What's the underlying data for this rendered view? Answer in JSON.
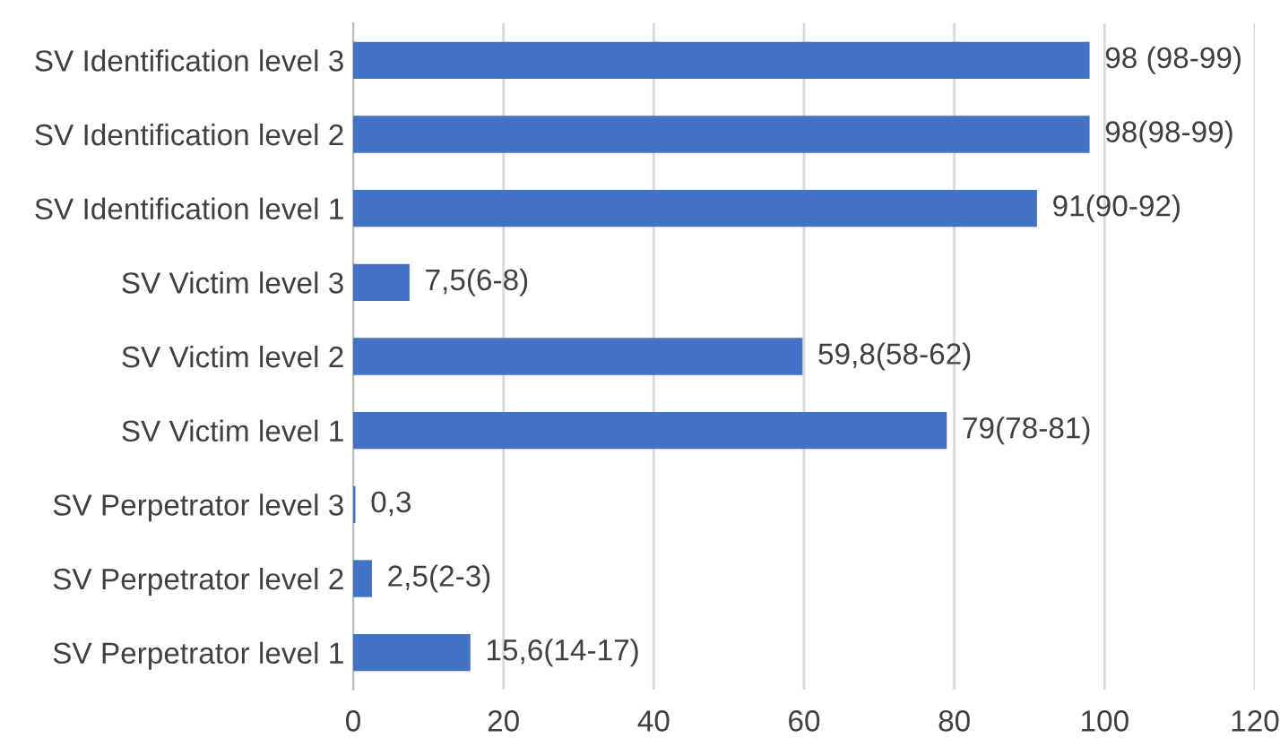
{
  "chart_data": {
    "type": "bar",
    "orientation": "horizontal",
    "categories": [
      "SV Identification level 3",
      "SV Identification level 2",
      "SV Identification level 1",
      "SV Victim level 3",
      "SV Victim level 2",
      "SV Victim level 1",
      "SV Perpetrator level 3",
      "SV Perpetrator level 2",
      "SV Perpetrator level 1"
    ],
    "values": [
      98,
      98,
      91,
      7.5,
      59.8,
      79,
      0.3,
      2.5,
      15.6
    ],
    "value_labels": [
      "98 (98-99)",
      "98(98-99)",
      "91(90-92)",
      "7,5(6-8)",
      "59,8(58-62)",
      "79(78-81)",
      "0,3",
      "2,5(2-3)",
      "15,6(14-17)"
    ],
    "color": "#4472c4",
    "xlim": [
      0,
      120
    ],
    "xticks": [
      0,
      20,
      40,
      60,
      80,
      100,
      120
    ],
    "grid": "x"
  }
}
